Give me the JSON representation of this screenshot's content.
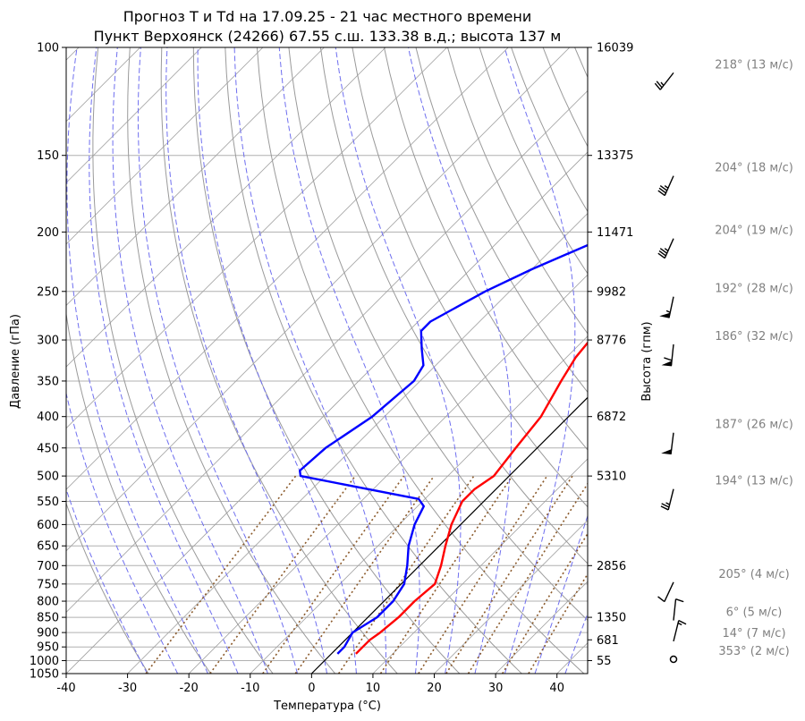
{
  "chart_data": {
    "type": "line",
    "title_line1": "Прогноз T и Td на 17.09.25 - 21 час местного времени",
    "title_line2": "Пункт Верхоянск (24266) 67.55 с.ш. 133.38 в.д.; высота 137 м",
    "xlabel": "Температура (°C)",
    "ylabel": "Давление (гПа)",
    "ylabel_right": "Высота (гпм)",
    "xlim": [
      -40,
      45
    ],
    "ylim": [
      1050,
      100
    ],
    "x_ticks": [
      "-40",
      "-30",
      "-20",
      "-10",
      "0",
      "10",
      "20",
      "30",
      "40"
    ],
    "pressure_ticks": [
      "100",
      "150",
      "200",
      "250",
      "300",
      "350",
      "400",
      "450",
      "500",
      "550",
      "600",
      "650",
      "700",
      "750",
      "800",
      "850",
      "900",
      "950",
      "1000",
      "1050"
    ],
    "height_ticks": [
      {
        "p": 100,
        "label": "16039"
      },
      {
        "p": 150,
        "label": "13375"
      },
      {
        "p": 200,
        "label": "11471"
      },
      {
        "p": 250,
        "label": "9982"
      },
      {
        "p": 300,
        "label": "8776"
      },
      {
        "p": 400,
        "label": "6872"
      },
      {
        "p": 500,
        "label": "5310"
      },
      {
        "p": 700,
        "label": "2856"
      },
      {
        "p": 850,
        "label": "1350"
      },
      {
        "p": 925,
        "label": "681"
      },
      {
        "p": 1000,
        "label": "55"
      }
    ],
    "series": [
      {
        "name": "T",
        "color": "#ff0000",
        "points": [
          [
            975,
            4.0
          ],
          [
            950,
            4.0
          ],
          [
            925,
            4.0
          ],
          [
            900,
            4.5
          ],
          [
            850,
            5.0
          ],
          [
            800,
            5.0
          ],
          [
            750,
            5.5
          ],
          [
            700,
            3.5
          ],
          [
            650,
            1.0
          ],
          [
            600,
            -1.5
          ],
          [
            550,
            -3.5
          ],
          [
            525,
            -3.5
          ],
          [
            500,
            -2.5
          ],
          [
            450,
            -3.5
          ],
          [
            400,
            -4.5
          ],
          [
            350,
            -7.0
          ],
          [
            320,
            -8.5
          ],
          [
            300,
            -9.0
          ],
          [
            280,
            -7.5
          ],
          [
            260,
            -5.5
          ],
          [
            250,
            -4.5
          ],
          [
            230,
            -2.0
          ],
          [
            210,
            0.5
          ],
          [
            200,
            2.0
          ],
          [
            185,
            3.5
          ],
          [
            170,
            4.5
          ],
          [
            160,
            6.0
          ],
          [
            150,
            8.0
          ],
          [
            130,
            11.5
          ],
          [
            115,
            15.0
          ]
        ]
      },
      {
        "name": "Td",
        "color": "#0000ff",
        "points": [
          [
            975,
            1.0
          ],
          [
            950,
            1.0
          ],
          [
            925,
            0.5
          ],
          [
            900,
            0.0
          ],
          [
            850,
            1.5
          ],
          [
            800,
            1.5
          ],
          [
            750,
            0.5
          ],
          [
            700,
            -2.0
          ],
          [
            650,
            -5.0
          ],
          [
            600,
            -7.5
          ],
          [
            560,
            -9.0
          ],
          [
            545,
            -11.0
          ],
          [
            500,
            -34.0
          ],
          [
            490,
            -35.0
          ],
          [
            450,
            -34.5
          ],
          [
            400,
            -32.0
          ],
          [
            350,
            -31.0
          ],
          [
            330,
            -32.0
          ],
          [
            310,
            -35.0
          ],
          [
            290,
            -38.0
          ],
          [
            280,
            -38.0
          ],
          [
            250,
            -34.0
          ],
          [
            230,
            -30.0
          ],
          [
            200,
            -22.0
          ],
          [
            180,
            -21.5
          ],
          [
            150,
            -18.5
          ],
          [
            120,
            -18.0
          ],
          [
            100,
            -16.0
          ]
        ]
      }
    ],
    "winds": [
      {
        "p": 110,
        "dir": 218,
        "speed": 13,
        "label": "218° (13 м/с)"
      },
      {
        "p": 162,
        "dir": 204,
        "speed": 18,
        "label": "204° (18 м/с)"
      },
      {
        "p": 205,
        "dir": 204,
        "speed": 19,
        "label": "204° (19 м/с)"
      },
      {
        "p": 255,
        "dir": 192,
        "speed": 28,
        "label": "192° (28 м/с)"
      },
      {
        "p": 305,
        "dir": 186,
        "speed": 32,
        "label": "186° (32 м/с)"
      },
      {
        "p": 425,
        "dir": 187,
        "speed": 26,
        "label": "187° (26 м/с)"
      },
      {
        "p": 525,
        "dir": 194,
        "speed": 13,
        "label": "194° (13 м/с)"
      },
      {
        "p": 745,
        "dir": 205,
        "speed": 4,
        "label": "205° (4 м/с)"
      },
      {
        "p": 860,
        "dir": 6,
        "speed": 5,
        "label": "6° (5 м/с)"
      },
      {
        "p": 930,
        "dir": 14,
        "speed": 7,
        "label": "14° (7 м/с)"
      },
      {
        "p": 995,
        "dir": 353,
        "speed": 2,
        "label": "353° (2 м/с)"
      }
    ],
    "reference_lines": {
      "isotherms": "grey",
      "dry_adiabats": "grey",
      "moist_adiabats": "blue-dashed",
      "mixing_ratio": "brown-dotted",
      "zero_isotherm": "black"
    }
  }
}
